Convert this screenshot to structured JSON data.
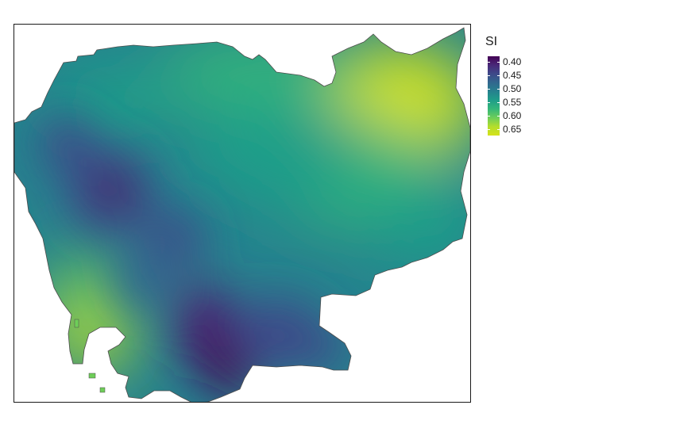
{
  "legend": {
    "title": "SI",
    "ticks": [
      {
        "label": "0.40",
        "value": 0.4
      },
      {
        "label": "0.45",
        "value": 0.45
      },
      {
        "label": "0.50",
        "value": 0.5
      },
      {
        "label": "0.55",
        "value": 0.55
      },
      {
        "label": "0.60",
        "value": 0.6
      },
      {
        "label": "0.65",
        "value": 0.65
      }
    ],
    "range": [
      0.38,
      0.675
    ],
    "palette": [
      "#440154",
      "#482878",
      "#3e4989",
      "#31688e",
      "#26828e",
      "#1f9e89",
      "#35b779",
      "#6ece58",
      "#b5de2b",
      "#d5e21a"
    ]
  },
  "colors": {
    "frame": "#1a1a1a",
    "border": "#4d4d4d",
    "background": "#ffffff"
  }
}
